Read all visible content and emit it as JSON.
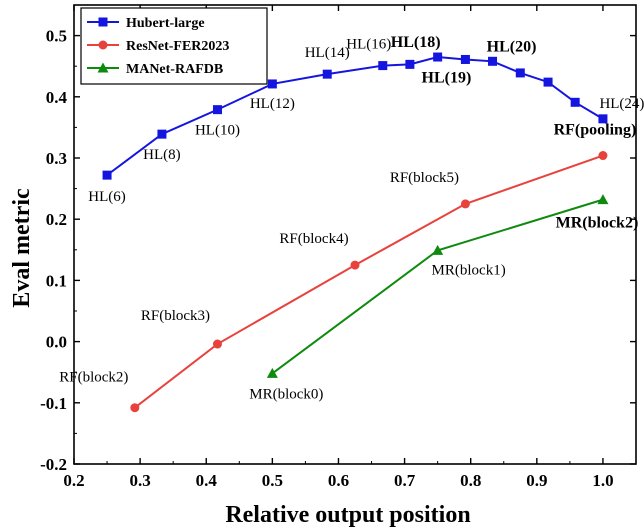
{
  "chart_data": {
    "type": "line",
    "xlabel": "Relative output position",
    "ylabel": "Eval metric",
    "xlim": [
      0.2,
      1.05
    ],
    "ylim": [
      -0.2,
      0.55
    ],
    "x_ticks": [
      "0.2",
      "0.3",
      "0.4",
      "0.5",
      "0.6",
      "0.7",
      "0.8",
      "0.9",
      "1.0"
    ],
    "y_ticks": [
      "-0.2",
      "-0.1",
      "0.0",
      "0.1",
      "0.2",
      "0.3",
      "0.4",
      "0.5"
    ],
    "legend_position": "top-left",
    "series": [
      {
        "name": "Hubert-large",
        "color": "#1515e0",
        "marker": "square",
        "points": [
          {
            "x": 0.25,
            "y": 0.272,
            "label": "HL(6)",
            "bold": false
          },
          {
            "x": 0.333,
            "y": 0.339,
            "label": "HL(8)",
            "bold": false
          },
          {
            "x": 0.417,
            "y": 0.379,
            "label": "HL(10)",
            "bold": false
          },
          {
            "x": 0.5,
            "y": 0.421,
            "label": "HL(12)",
            "bold": false
          },
          {
            "x": 0.583,
            "y": 0.437,
            "label": "HL(14)",
            "bold": false
          },
          {
            "x": 0.667,
            "y": 0.451,
            "label": "HL(16)",
            "bold": false
          },
          {
            "x": 0.708,
            "y": 0.453,
            "label": "",
            "bold": false
          },
          {
            "x": 0.75,
            "y": 0.465,
            "label": "HL(18)",
            "bold": true
          },
          {
            "x": 0.792,
            "y": 0.461,
            "label": "HL(19)",
            "bold": true
          },
          {
            "x": 0.833,
            "y": 0.458,
            "label": "HL(20)",
            "bold": true
          },
          {
            "x": 0.875,
            "y": 0.439,
            "label": "",
            "bold": false
          },
          {
            "x": 0.917,
            "y": 0.424,
            "label": "",
            "bold": false
          },
          {
            "x": 0.958,
            "y": 0.391,
            "label": "",
            "bold": false
          },
          {
            "x": 1.0,
            "y": 0.364,
            "label": "HL(24)",
            "bold": false
          }
        ]
      },
      {
        "name": "ResNet-FER2023",
        "color": "#e8423c",
        "marker": "circle",
        "points": [
          {
            "x": 0.292,
            "y": -0.108,
            "label": "RF(block2)",
            "bold": false
          },
          {
            "x": 0.417,
            "y": -0.004,
            "label": "RF(block3)",
            "bold": false
          },
          {
            "x": 0.625,
            "y": 0.125,
            "label": "RF(block4)",
            "bold": false
          },
          {
            "x": 0.792,
            "y": 0.225,
            "label": "RF(block5)",
            "bold": false
          },
          {
            "x": 1.0,
            "y": 0.304,
            "label": "RF(pooling)",
            "bold": true
          }
        ]
      },
      {
        "name": "MANet-RAFDB",
        "color": "#0e8a0e",
        "marker": "triangle",
        "points": [
          {
            "x": 0.5,
            "y": -0.052,
            "label": "MR(block0)",
            "bold": false
          },
          {
            "x": 0.75,
            "y": 0.149,
            "label": "MR(block1)",
            "bold": false
          },
          {
            "x": 1.0,
            "y": 0.232,
            "label": "MR(block2)",
            "bold": true
          }
        ]
      }
    ]
  }
}
